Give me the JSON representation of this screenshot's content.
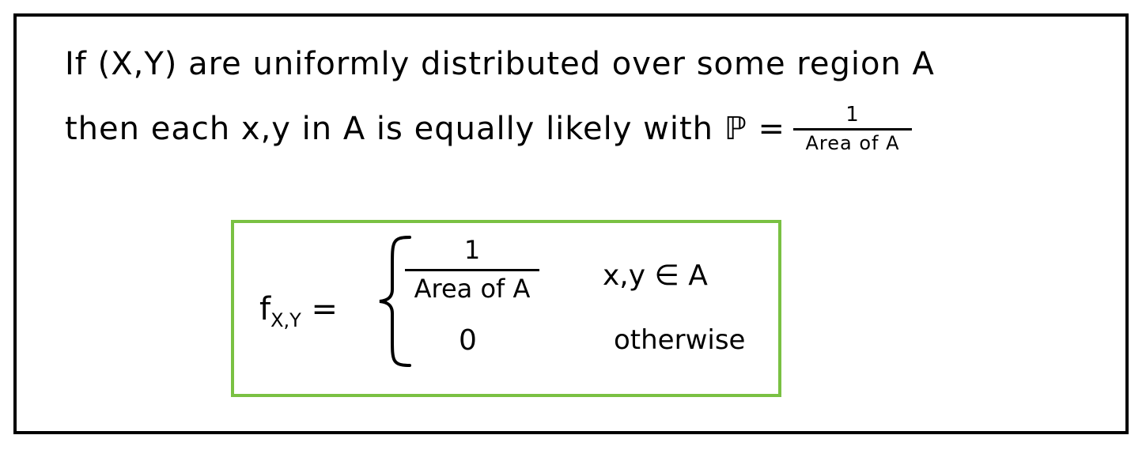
{
  "intro": {
    "line1": "If (X,Y) are uniformly distributed over some region A",
    "line2": "then each x,y in A is equally likely with ℙ =",
    "prob_numerator": "1",
    "prob_denominator": "Area of A"
  },
  "definition": {
    "function_name": "f",
    "function_subscript": "X,Y",
    "equals": "=",
    "case1_numerator": "1",
    "case1_denominator": "Area of A",
    "case1_condition": "x,y ∈ A",
    "case2_value": "0",
    "case2_condition": "otherwise"
  },
  "colors": {
    "frame": "#000000",
    "definition_box": "#7ac143"
  }
}
